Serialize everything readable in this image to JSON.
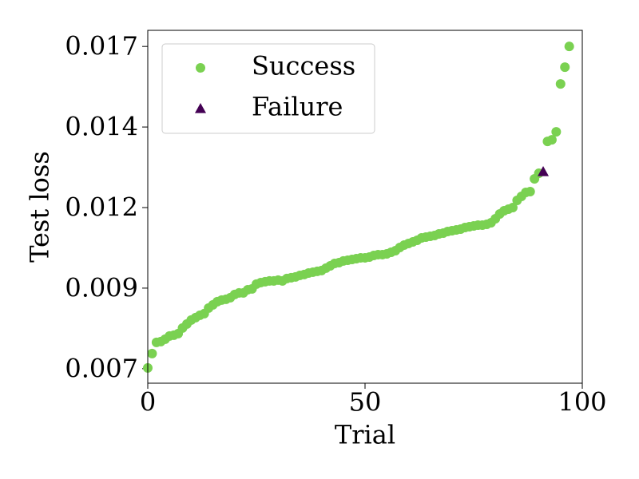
{
  "chart_data": {
    "type": "scatter",
    "x_label": "Trial",
    "y_label": "Test loss",
    "xlim": [
      0,
      100
    ],
    "ylim": [
      0.00655,
      0.0175
    ],
    "xticks": [
      0,
      50,
      100
    ],
    "yticks": [
      0.007,
      {
        "value": 0.0095,
        "label": "0.009"
      },
      0.012,
      {
        "value": 0.0145,
        "label": "0.014"
      },
      0.017
    ],
    "legend": "upper left",
    "series": [
      {
        "name": "Success",
        "color": "#7ad151",
        "marker": "circle",
        "x": [
          0,
          1,
          2,
          3,
          4,
          5,
          6,
          7,
          8,
          9,
          10,
          11,
          12,
          13,
          14,
          15,
          16,
          17,
          18,
          19,
          20,
          21,
          22,
          23,
          24,
          25,
          26,
          27,
          28,
          29,
          30,
          31,
          32,
          33,
          34,
          35,
          36,
          37,
          38,
          39,
          40,
          41,
          42,
          43,
          44,
          45,
          46,
          47,
          48,
          49,
          50,
          51,
          52,
          53,
          54,
          55,
          56,
          57,
          58,
          59,
          60,
          61,
          62,
          63,
          64,
          65,
          66,
          67,
          68,
          69,
          70,
          71,
          72,
          73,
          74,
          75,
          76,
          77,
          78,
          79,
          80,
          81,
          82,
          83,
          84,
          85,
          86,
          87,
          88,
          89,
          90,
          92,
          93,
          94,
          95,
          96,
          97
        ],
        "y": [
          0.007025,
          0.00747,
          0.007817,
          0.007842,
          0.007916,
          0.008015,
          0.00804,
          0.008089,
          0.008262,
          0.008386,
          0.00851,
          0.008584,
          0.008658,
          0.008708,
          0.008881,
          0.00898,
          0.009079,
          0.009129,
          0.009153,
          0.009203,
          0.009302,
          0.009351,
          0.009351,
          0.00945,
          0.009475,
          0.009624,
          0.009673,
          0.009698,
          0.009723,
          0.009723,
          0.009748,
          0.009723,
          0.009797,
          0.009822,
          0.009847,
          0.009896,
          0.009921,
          0.00997,
          0.009995,
          0.01002,
          0.010045,
          0.010119,
          0.010193,
          0.010267,
          0.010292,
          0.010342,
          0.010366,
          0.010391,
          0.010416,
          0.010441,
          0.010441,
          0.010465,
          0.010515,
          0.01054,
          0.01054,
          0.010564,
          0.010614,
          0.010663,
          0.010762,
          0.010837,
          0.010886,
          0.010936,
          0.010985,
          0.011059,
          0.011084,
          0.011109,
          0.011134,
          0.011183,
          0.011208,
          0.011257,
          0.011282,
          0.011307,
          0.011332,
          0.011381,
          0.011406,
          0.011431,
          0.011455,
          0.011455,
          0.01148,
          0.01153,
          0.011653,
          0.011802,
          0.011901,
          0.01195,
          0.012,
          0.012223,
          0.012347,
          0.01247,
          0.012495,
          0.012891,
          0.013064,
          0.014054,
          0.014104,
          0.014351,
          0.015837,
          0.016356,
          0.017
        ]
      },
      {
        "name": "Failure",
        "color": "#440154",
        "marker": "triangle",
        "x": [
          91
        ],
        "y": [
          0.013114
        ]
      }
    ]
  }
}
